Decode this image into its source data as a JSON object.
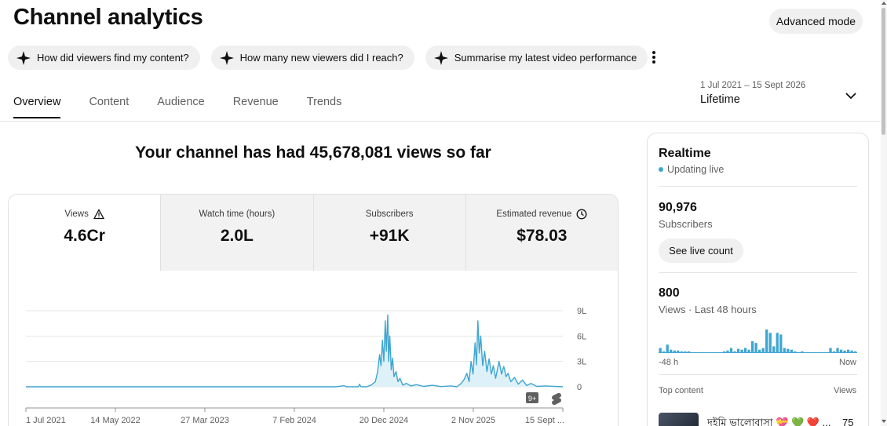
{
  "page": {
    "title": "Channel analytics",
    "advanced_mode_label": "Advanced mode"
  },
  "chips": [
    {
      "label": "How did viewers find my content?",
      "icon": "sparkle-icon"
    },
    {
      "label": "How many new viewers did I reach?",
      "icon": "sparkle-icon"
    },
    {
      "label": "Summarise my latest video performance",
      "icon": "sparkle-icon"
    }
  ],
  "tabs": [
    "Overview",
    "Content",
    "Audience",
    "Revenue",
    "Trends"
  ],
  "active_tab": "Overview",
  "date_range": {
    "range": "1 Jul 2021 – 15 Sept 2026",
    "label": "Lifetime"
  },
  "headline": "Your channel has had 45,678,081 views so far",
  "metrics": [
    {
      "label": "Views",
      "value": "4.6Cr",
      "icon": "warning-icon"
    },
    {
      "label": "Watch time (hours)",
      "value": "2.0L"
    },
    {
      "label": "Subscribers",
      "value": "+91K"
    },
    {
      "label": "Estimated revenue",
      "value": "$78.03",
      "icon": "clock-icon"
    }
  ],
  "colors": {
    "line": "#3ea6d0",
    "fill": "#dff1f8",
    "chip_bg": "#f0f0f0"
  },
  "chart_data": {
    "type": "area",
    "x_ticks": [
      "1 Jul 2021",
      "14 May 2022",
      "27 Mar 2023",
      "7 Feb 2024",
      "20 Dec 2024",
      "2 Nov 2025",
      "15 Sept ..."
    ],
    "y_ticks": [
      "9L",
      "6L",
      "3L",
      "0"
    ],
    "ylim": [
      0,
      900000
    ],
    "x_range": [
      "2021-07-01",
      "2026-09-15"
    ],
    "points": [
      [
        "2021-07-01",
        0
      ],
      [
        "2024-07-01",
        0
      ],
      [
        "2024-08-01",
        12000
      ],
      [
        "2024-08-10",
        0
      ],
      [
        "2024-09-20",
        0
      ],
      [
        "2024-09-25",
        30000
      ],
      [
        "2024-09-30",
        0
      ],
      [
        "2024-10-20",
        0
      ],
      [
        "2024-11-05",
        20000
      ],
      [
        "2024-11-20",
        60000
      ],
      [
        "2024-11-28",
        180000
      ],
      [
        "2024-12-05",
        380000
      ],
      [
        "2024-12-10",
        250000
      ],
      [
        "2024-12-15",
        550000
      ],
      [
        "2024-12-20",
        300000
      ],
      [
        "2024-12-25",
        780000
      ],
      [
        "2024-12-29",
        420000
      ],
      [
        "2025-01-03",
        850000
      ],
      [
        "2025-01-06",
        300000
      ],
      [
        "2025-01-10",
        600000
      ],
      [
        "2025-01-15",
        200000
      ],
      [
        "2025-01-20",
        340000
      ],
      [
        "2025-01-25",
        120000
      ],
      [
        "2025-02-01",
        180000
      ],
      [
        "2025-02-08",
        60000
      ],
      [
        "2025-02-15",
        100000
      ],
      [
        "2025-02-25",
        20000
      ],
      [
        "2025-03-10",
        40000
      ],
      [
        "2025-03-25",
        10000
      ],
      [
        "2025-04-15",
        25000
      ],
      [
        "2025-05-10",
        5000
      ],
      [
        "2025-06-10",
        18000
      ],
      [
        "2025-07-10",
        3000
      ],
      [
        "2025-08-15",
        10000
      ],
      [
        "2025-09-05",
        0
      ],
      [
        "2025-09-20",
        40000
      ],
      [
        "2025-10-01",
        90000
      ],
      [
        "2025-10-10",
        160000
      ],
      [
        "2025-10-18",
        60000
      ],
      [
        "2025-10-25",
        300000
      ],
      [
        "2025-11-01",
        150000
      ],
      [
        "2025-11-08",
        520000
      ],
      [
        "2025-11-13",
        260000
      ],
      [
        "2025-11-18",
        780000
      ],
      [
        "2025-11-23",
        400000
      ],
      [
        "2025-11-28",
        600000
      ],
      [
        "2025-12-05",
        250000
      ],
      [
        "2025-12-12",
        420000
      ],
      [
        "2025-12-20",
        180000
      ],
      [
        "2025-12-28",
        330000
      ],
      [
        "2026-01-05",
        150000
      ],
      [
        "2026-01-12",
        250000
      ],
      [
        "2026-01-20",
        100000
      ],
      [
        "2026-02-01",
        300000
      ],
      [
        "2026-02-10",
        150000
      ],
      [
        "2026-02-18",
        240000
      ],
      [
        "2026-02-26",
        120000
      ],
      [
        "2026-03-05",
        160000
      ],
      [
        "2026-03-15",
        60000
      ],
      [
        "2026-03-28",
        110000
      ],
      [
        "2026-04-10",
        30000
      ],
      [
        "2026-04-25",
        80000
      ],
      [
        "2026-05-10",
        15000
      ],
      [
        "2026-05-25",
        40000
      ],
      [
        "2026-06-15",
        5000
      ],
      [
        "2026-07-15",
        10000
      ],
      [
        "2026-09-15",
        0
      ]
    ]
  },
  "realtime": {
    "title": "Realtime",
    "live_label": "Updating live",
    "subscribers_value": "90,976",
    "subscribers_label": "Subscribers",
    "live_count_button": "See live count",
    "views_value": "800",
    "views_label": "Views · Last 48 hours",
    "axis_start": "-48 h",
    "axis_end": "Now",
    "hourly_views": [
      6,
      2,
      10,
      4,
      3,
      3,
      2,
      2,
      2,
      1,
      1,
      1,
      1,
      1,
      1,
      1,
      1,
      1,
      2,
      3,
      6,
      2,
      5,
      4,
      6,
      4,
      14,
      12,
      4,
      6,
      28,
      24,
      8,
      24,
      22,
      6,
      5,
      4,
      2,
      1,
      2,
      1,
      1,
      1,
      1,
      1,
      1,
      1,
      6,
      2,
      6,
      4,
      3,
      4,
      3,
      2
    ],
    "top_content_label": "Top content",
    "views_col_label": "Views",
    "top_item_title": "দইমি ভালোবাসা 💝 💚 ❤️ ...",
    "top_item_views": "75"
  }
}
